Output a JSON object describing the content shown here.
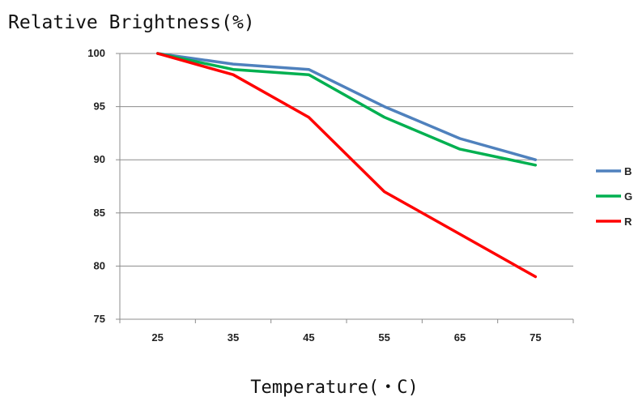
{
  "chart_data": {
    "type": "line",
    "title": "Relative Brightness(%)",
    "xlabel": "Temperature(・C)",
    "ylabel": "",
    "x": [
      25,
      35,
      45,
      55,
      65,
      75
    ],
    "ylim": [
      75,
      100
    ],
    "yticks": [
      75,
      80,
      85,
      90,
      95,
      100
    ],
    "grid": true,
    "legend": "right",
    "series": [
      {
        "name": "B",
        "color": "#4f81bd",
        "values": [
          100,
          99,
          98.5,
          95,
          92,
          90
        ]
      },
      {
        "name": "G",
        "color": "#00b050",
        "values": [
          100,
          98.5,
          98,
          94,
          91,
          89.5
        ]
      },
      {
        "name": "R",
        "color": "#ff0000",
        "values": [
          100,
          98,
          94,
          87,
          83,
          79
        ]
      }
    ]
  }
}
